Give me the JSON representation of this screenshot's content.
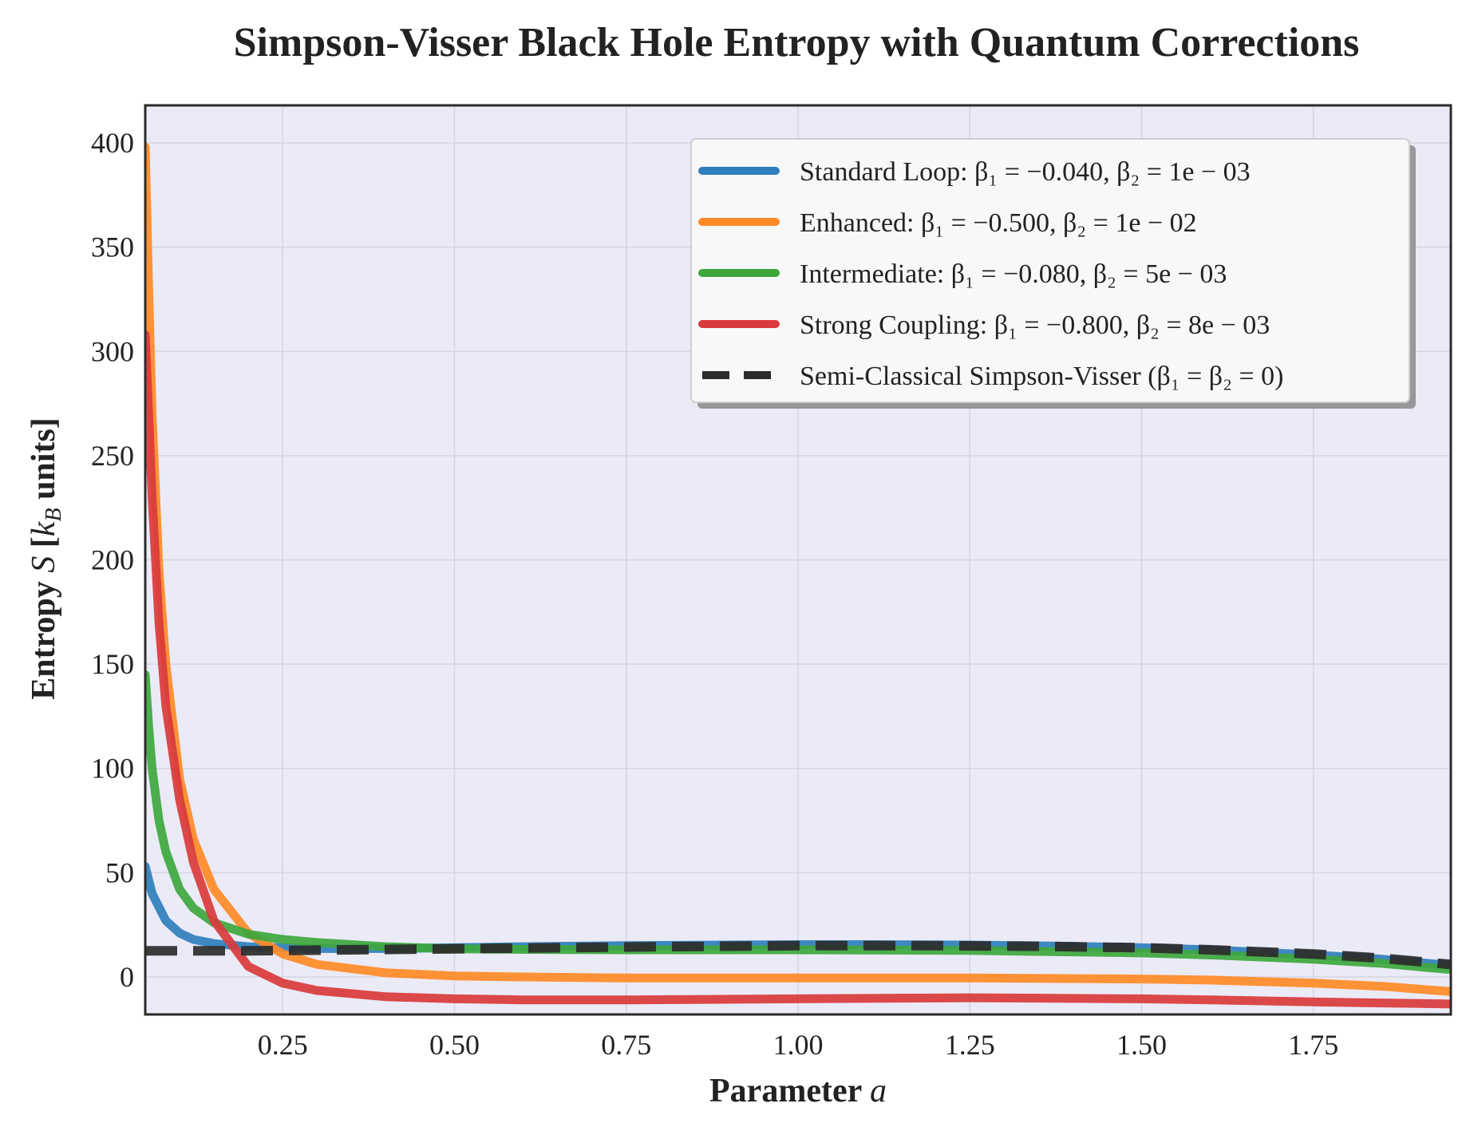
{
  "chart_data": {
    "type": "line",
    "title": "Simpson-Visser Black Hole Entropy with Quantum Corrections",
    "xlabel": "Parameter a",
    "ylabel": "Entropy S [k_B units]",
    "xlim": [
      0.05,
      1.95
    ],
    "ylim": [
      -18,
      418
    ],
    "xticks": [
      0.25,
      0.5,
      0.75,
      1.0,
      1.25,
      1.5,
      1.75
    ],
    "xtick_labels": [
      "0.25",
      "0.50",
      "0.75",
      "1.00",
      "1.25",
      "1.50",
      "1.75"
    ],
    "yticks": [
      0,
      50,
      100,
      150,
      200,
      250,
      300,
      350,
      400
    ],
    "ytick_labels": [
      "0",
      "50",
      "100",
      "150",
      "200",
      "250",
      "300",
      "350",
      "400"
    ],
    "grid": true,
    "legend_position": "top-right",
    "background_color": "#ebebf7",
    "series": [
      {
        "name": "Standard Loop",
        "legend_label": "Standard Loop: β₁ = −0.040, β₂ = 1e − 03",
        "color": "#2f7fbd",
        "dash": "solid",
        "x": [
          0.05,
          0.06,
          0.08,
          0.1,
          0.12,
          0.15,
          0.2,
          0.25,
          0.3,
          0.4,
          0.5,
          0.6,
          0.75,
          0.9,
          1.0,
          1.1,
          1.25,
          1.4,
          1.5,
          1.6,
          1.75,
          1.85,
          1.95
        ],
        "values": [
          53,
          40,
          27,
          21,
          18,
          16,
          14.5,
          14,
          13.6,
          13.6,
          14,
          14.5,
          15,
          15.3,
          15.5,
          15.5,
          15.3,
          14.7,
          14,
          13,
          10.5,
          8.5,
          5.5
        ]
      },
      {
        "name": "Enhanced",
        "legend_label": "Enhanced: β₁ = −0.500, β₂ = 1e − 02",
        "color": "#ff8a26",
        "dash": "solid",
        "x": [
          0.05,
          0.055,
          0.06,
          0.07,
          0.08,
          0.1,
          0.12,
          0.15,
          0.2,
          0.25,
          0.3,
          0.4,
          0.5,
          0.6,
          0.75,
          1.0,
          1.25,
          1.5,
          1.6,
          1.75,
          1.85,
          1.95
        ],
        "values": [
          398,
          330,
          270,
          195,
          150,
          95,
          66,
          42,
          21,
          11,
          6,
          2,
          0.5,
          0,
          -0.5,
          -0.5,
          -0.5,
          -1,
          -1.5,
          -3,
          -4.5,
          -7
        ]
      },
      {
        "name": "Intermediate",
        "legend_label": "Intermediate: β₁ = −0.080, β₂ = 5e − 03",
        "color": "#3da73d",
        "dash": "solid",
        "x": [
          0.05,
          0.055,
          0.06,
          0.07,
          0.08,
          0.1,
          0.12,
          0.15,
          0.2,
          0.25,
          0.3,
          0.4,
          0.5,
          0.6,
          0.75,
          1.0,
          1.25,
          1.5,
          1.6,
          1.75,
          1.85,
          1.95
        ],
        "values": [
          145,
          120,
          100,
          75,
          60,
          42,
          33,
          26,
          20.5,
          18,
          16.5,
          14.5,
          13.5,
          13.2,
          13,
          13,
          12.7,
          11.5,
          10.5,
          8.5,
          6.5,
          3.5
        ]
      },
      {
        "name": "Strong Coupling",
        "legend_label": "Strong Coupling: β₁ = −0.800, β₂ = 8e − 03",
        "color": "#d93a3b",
        "dash": "solid",
        "x": [
          0.05,
          0.055,
          0.06,
          0.07,
          0.08,
          0.1,
          0.12,
          0.15,
          0.2,
          0.25,
          0.3,
          0.4,
          0.5,
          0.6,
          0.75,
          1.0,
          1.25,
          1.5,
          1.6,
          1.75,
          1.85,
          1.95
        ],
        "values": [
          308,
          270,
          230,
          170,
          130,
          85,
          55,
          27,
          5,
          -3,
          -6.5,
          -9.5,
          -10.5,
          -11,
          -11,
          -10.5,
          -10,
          -10.5,
          -11,
          -12,
          -12.5,
          -13
        ]
      },
      {
        "name": "Semi-Classical Simpson-Visser",
        "legend_label": "Semi-Classical Simpson-Visser (β₁ = β₂ = 0)",
        "color": "#2b2b2b",
        "dash": "dashed",
        "x": [
          0.05,
          0.2,
          0.35,
          0.5,
          0.65,
          0.8,
          1.0,
          1.2,
          1.35,
          1.5,
          1.6,
          1.75,
          1.85,
          1.95
        ],
        "values": [
          12.5,
          12.5,
          13,
          13.5,
          14,
          14.5,
          15,
          15,
          14.7,
          14,
          13,
          11,
          9,
          6
        ]
      }
    ]
  }
}
